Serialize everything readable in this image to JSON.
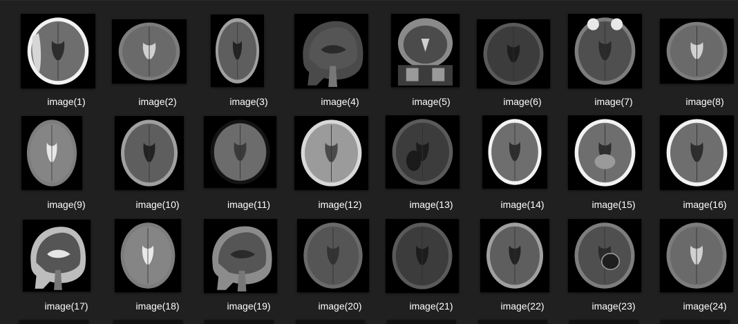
{
  "window": {
    "view": "Large icons",
    "background": "#202020"
  },
  "items": [
    {
      "label": "image(1)",
      "kind": "ct-axial-bleed"
    },
    {
      "label": "image(2)",
      "kind": "mri-axial-t2"
    },
    {
      "label": "image(3)",
      "kind": "mri-axial-flair"
    },
    {
      "label": "image(4)",
      "kind": "mri-sagittal-dark"
    },
    {
      "label": "image(5)",
      "kind": "mri-coronal"
    },
    {
      "label": "image(6)",
      "kind": "mri-axial-dark"
    },
    {
      "label": "image(7)",
      "kind": "mri-axial-orbits"
    },
    {
      "label": "image(8)",
      "kind": "mri-axial-t2"
    },
    {
      "label": "image(9)",
      "kind": "mri-axial-t2-bright"
    },
    {
      "label": "image(10)",
      "kind": "mri-axial-flair"
    },
    {
      "label": "image(11)",
      "kind": "mri-axial-dwi"
    },
    {
      "label": "image(12)",
      "kind": "mri-axial-swi"
    },
    {
      "label": "image(13)",
      "kind": "ct-axial-dark-lesion"
    },
    {
      "label": "image(14)",
      "kind": "ct-axial"
    },
    {
      "label": "image(15)",
      "kind": "ct-axial-base"
    },
    {
      "label": "image(16)",
      "kind": "ct-axial"
    },
    {
      "label": "image(17)",
      "kind": "mri-sagittal-t2"
    },
    {
      "label": "image(18)",
      "kind": "mri-axial-t2-bright"
    },
    {
      "label": "image(19)",
      "kind": "mri-sagittal-t1"
    },
    {
      "label": "image(20)",
      "kind": "mri-axial-gray"
    },
    {
      "label": "image(21)",
      "kind": "mri-axial-dark"
    },
    {
      "label": "image(22)",
      "kind": "mri-axial-flair"
    },
    {
      "label": "image(23)",
      "kind": "mri-axial-lesion"
    },
    {
      "label": "image(24)",
      "kind": "mri-axial-t2"
    }
  ]
}
